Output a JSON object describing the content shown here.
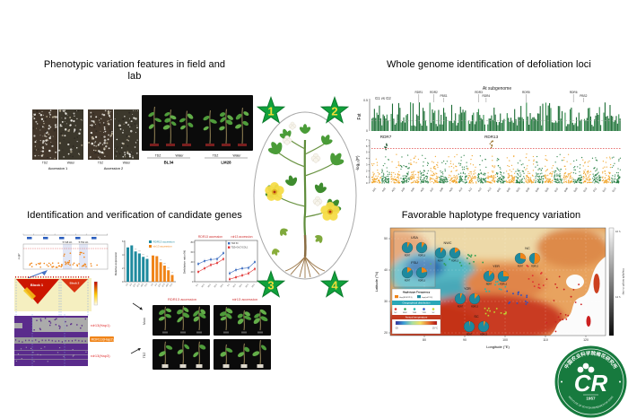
{
  "panel1": {
    "title": "Phenotypic variation features in field and lab",
    "field": {
      "treatments": [
        "TDZ",
        "Water",
        "TDZ",
        "Water"
      ],
      "accessions": [
        "Accession 1",
        "Accession 2"
      ]
    },
    "lab": {
      "groups": [
        {
          "treatments": [
            "TDZ",
            "Water"
          ],
          "name": "BL34"
        },
        {
          "treatments": [
            "TDZ",
            "Water"
          ],
          "name": "LM28"
        }
      ]
    }
  },
  "panel2": {
    "title": "Whole genome identification of defoliation loci",
    "subtitle": "At subgenome",
    "fst_series_label": "G1 vs G2",
    "fst_ylabel": "Fst",
    "manhattan_ylabel": "-log₁₀(P)"
  },
  "panel3": {
    "title": "Identification and verification of candidate genes",
    "locus": {
      "regions": [
        "5748 kb",
        "5754 kb"
      ],
      "ylabel": "-logP"
    },
    "ld": {
      "blocks": [
        "Block 1",
        "Block 2"
      ]
    },
    "haplotypes": [
      {
        "label": "rdr13(Hap1)",
        "color": "#E03030"
      },
      {
        "label": "RDR13(Hap2)",
        "color": "#FFFFFF"
      },
      {
        "label": "rdr13(Hap3)",
        "color": "#E03030"
      }
    ],
    "verification": {
      "columns": [
        "RDR13 accession",
        "rdr13 accession"
      ],
      "rows": [
        "Mock",
        "TDZ"
      ]
    }
  },
  "panel4": {
    "title": "Favorable haplotype frequency variation",
    "xlabel": "Longitude (°E)",
    "ylabel": "Latitude (°N)",
    "xticks": [
      "80",
      "90",
      "100",
      "110",
      "120"
    ],
    "yticks": [
      "50",
      "40",
      "30",
      "20"
    ],
    "daylight_label": "Daylight length in July",
    "daylight_ticks": [
      "16 h",
      "14 h"
    ],
    "legend": {
      "haplotype_title": "Haplotype Frequency",
      "haplotype_items": [
        {
          "label": "Hap(RDR7/13)",
          "color": "#F08418"
        },
        {
          "label": "hap(rdr7/13)",
          "color": "#1E8A9E"
        }
      ],
      "geo_title": "Geographical distribution",
      "geo_items": [
        {
          "label": "NC",
          "color": "#E03030"
        },
        {
          "label": "NWC",
          "color": "#2E9E4F"
        },
        {
          "label": "YER",
          "color": "#27B5A8"
        },
        {
          "label": "YZR",
          "color": "#2B4FC2"
        },
        {
          "label": "SC",
          "color": "#BFD730"
        }
      ],
      "temp_title": "Annual temperature",
      "temp_ticks": [
        "-25",
        "25 °C"
      ]
    }
  },
  "stars": [
    "1",
    "2",
    "3",
    "4"
  ],
  "logo": {
    "monogram": "CR",
    "year": "1957",
    "top_text": "中国农业科学院棉花研究所",
    "bottom_text": "INSTITUTE OF COTTON RESEARCH OF CAAS"
  },
  "chart_data": [
    {
      "id": "fst-scan",
      "type": "bar",
      "title": "At subgenome",
      "series_label": "G1 vs G2",
      "ylabel": "Fst",
      "ylim": [
        0,
        0.5
      ],
      "yticks": [
        "0.5",
        "0"
      ],
      "threshold": 0.18,
      "blocks": 13,
      "bar_color": "#1A6B33",
      "annotations": [
        {
          "label": "RDR1",
          "x": 0.19,
          "dy": 0
        },
        {
          "label": "RDR2",
          "x": 0.25,
          "dy": 0
        },
        {
          "label": "PBS1",
          "x": 0.29,
          "dy": 4
        },
        {
          "label": "RDR3",
          "x": 0.43,
          "dy": 0
        },
        {
          "label": "RDR4",
          "x": 0.46,
          "dy": 4
        },
        {
          "label": "RDR5",
          "x": 0.62,
          "dy": 0
        },
        {
          "label": "RDR6",
          "x": 0.81,
          "dy": 0
        },
        {
          "label": "PBS2",
          "x": 0.85,
          "dy": 4
        }
      ]
    },
    {
      "id": "manhattan",
      "type": "scatter",
      "ylabel": "-log₁₀(P)",
      "ylim": [
        0,
        7
      ],
      "yticks": [
        0,
        1,
        2,
        3,
        4,
        5,
        6,
        7
      ],
      "threshold": 5.6,
      "threshold_color": "#E04545",
      "colors": {
        "odd": "#F0A01E",
        "even": "#1E7A3C"
      },
      "chromosomes": [
        "A01",
        "A02",
        "A03",
        "A04",
        "A05",
        "A06",
        "A07",
        "A08",
        "A09",
        "A10",
        "A11",
        "A12",
        "A13",
        "D01",
        "D02",
        "D03",
        "D04",
        "D05",
        "D06",
        "D07",
        "D08",
        "D09",
        "D10",
        "D11",
        "D12",
        "D13"
      ],
      "peaks": [
        {
          "label": "RDR7",
          "chrom": "A02",
          "value": 6.5
        },
        {
          "label": "RDR13",
          "chrom": "A13",
          "value": 6.9
        }
      ]
    },
    {
      "id": "expression",
      "type": "bar",
      "ylabel": "Relative expression",
      "yticks": [
        0,
        2,
        4,
        6
      ],
      "categories": [
        "0 h",
        "6 h",
        "12 h",
        "24 h",
        "48 h",
        "72 h"
      ],
      "sig": "***",
      "series": [
        {
          "name": "RDR13 accession",
          "color": "#1E8A9E",
          "values": [
            5.1,
            5.4,
            4.5,
            4.2,
            3.7,
            3.4
          ]
        },
        {
          "name": "rdr13 accession",
          "color": "#F08418",
          "values": [
            3.9,
            3.8,
            2.9,
            2.4,
            1.7,
            1.0
          ]
        }
      ]
    },
    {
      "id": "defoliation",
      "type": "line",
      "ylabel": "Defoliation ratio (%)",
      "ylim": [
        0,
        80
      ],
      "yticks": [
        0,
        20,
        40,
        60,
        80
      ],
      "x": [
        "5 d",
        "10 d",
        "15 d",
        "20 d",
        "25 d"
      ],
      "panels": [
        "RDR13 accession",
        "rdr13 accession"
      ],
      "legend": [
        {
          "label": "TDZ 50",
          "color": "#3A6BBF"
        },
        {
          "label": "TDZ+GhCYCOL1",
          "color": "#E03030"
        }
      ],
      "series": [
        {
          "panel": 0,
          "legend": 0,
          "values": [
            36,
            42,
            45,
            46,
            58
          ]
        },
        {
          "panel": 0,
          "legend": 1,
          "values": [
            20,
            27,
            34,
            38,
            46
          ]
        },
        {
          "panel": 1,
          "legend": 0,
          "values": [
            17,
            24,
            27,
            28,
            40
          ]
        },
        {
          "panel": 1,
          "legend": 1,
          "values": [
            5,
            9,
            13,
            17,
            26
          ]
        }
      ]
    },
    {
      "id": "haplotype-map",
      "type": "pie",
      "pie_labels": [
        "RDR7",
        "RDR13"
      ],
      "pie_colors": {
        "favorable": "#F08418",
        "other": "#1E8A9E"
      },
      "regions": [
        {
          "name": "USA",
          "RDR7": 0.08,
          "RDR13": 0.1
        },
        {
          "name": "FSU",
          "RDR7": 0.15,
          "RDR13": 0.22
        },
        {
          "name": "NWC",
          "RDR7": 0.1,
          "RDR13": 0.15
        },
        {
          "name": "NC",
          "RDR7": 0.28,
          "RDR13": 0.52
        },
        {
          "name": "YER",
          "RDR7": 0.12,
          "RDR13": 0.25
        },
        {
          "name": "YZR",
          "RDR7": 0.06,
          "RDR13": 0.12
        },
        {
          "name": "SC",
          "RDR7": 0.03,
          "RDR13": 0.06
        }
      ],
      "clusters": [
        {
          "region": "NWC",
          "color": "#2E9E4F",
          "n": 16
        },
        {
          "region": "NC",
          "color": "#E03030",
          "n": 12
        },
        {
          "region": "YER",
          "color": "#27B5A8",
          "n": 14
        },
        {
          "region": "YZR",
          "color": "#2B4FC2",
          "n": 14
        },
        {
          "region": "SC",
          "color": "#BFD730",
          "n": 12
        }
      ]
    }
  ]
}
